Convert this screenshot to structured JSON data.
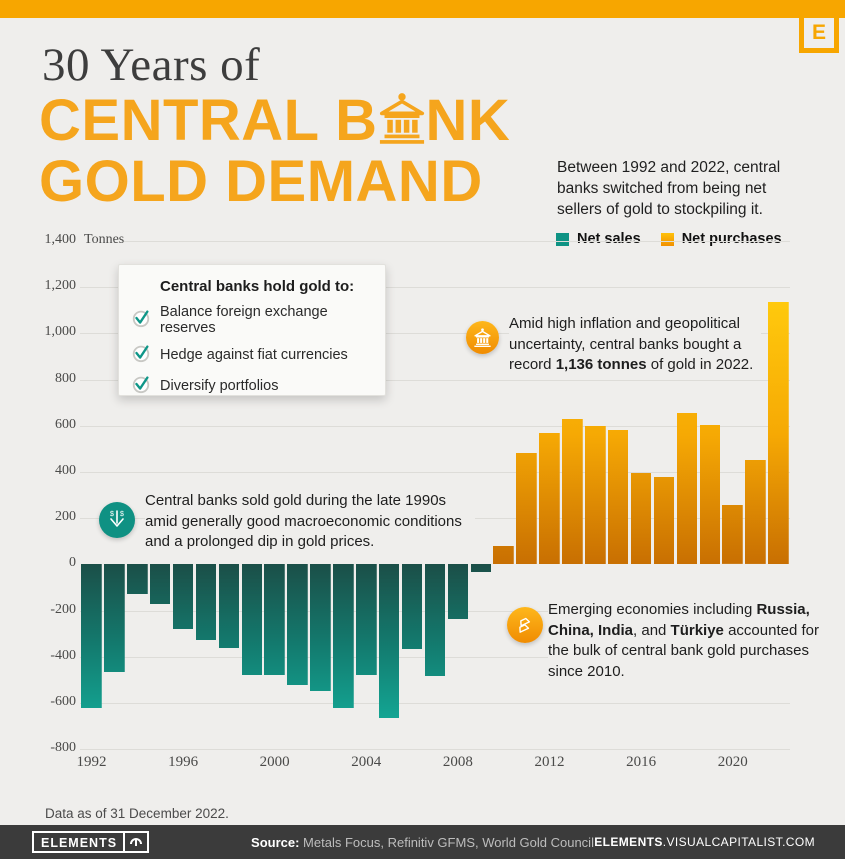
{
  "header": {
    "logo_letter": "E",
    "title_serif": "30 Years of",
    "title_line1_pre": "CENTRAL B",
    "title_line1_post": "NK",
    "title_line2": "GOLD DEMAND",
    "intro": "Between 1992 and 2022, central banks switched from being net sellers of gold to stockpiling it."
  },
  "legend": {
    "net_sales": "Net sales",
    "net_purchases": "Net purchases"
  },
  "callout": {
    "title": "Central banks hold gold to:",
    "items": [
      "Balance foreign exchange reserves",
      "Hedge against fiat currencies",
      "Diversify portfolios"
    ]
  },
  "annotations": {
    "record": {
      "p1": "Amid high inflation and geopolitical uncertainty, central banks bought a record ",
      "b1": "1,136 tonnes",
      "p2": " of gold in 2022."
    },
    "nineties": {
      "text": "Central banks sold gold during the late 1990s amid generally good macroeconomic conditions and a prolonged dip in gold prices."
    },
    "emerging": {
      "p1": "Emerging economies including ",
      "b1": "Russia, China, India",
      "p2": ", and ",
      "b2": "Türkiye",
      "p3": " accounted for the bulk of central bank gold purchases since 2010."
    }
  },
  "chart_data": {
    "type": "bar",
    "title": "30 Years of Central Bank Gold Demand",
    "unit": "Tonnes",
    "ylabel": "Tonnes",
    "ylim": [
      -800,
      1400
    ],
    "ytick_step": 200,
    "grid": true,
    "legend_position": "top-right",
    "legend": [
      "Net sales",
      "Net purchases"
    ],
    "colors": {
      "net_sales_at_zero": "#1B4F48",
      "net_sales_tip": "#13A593",
      "net_purchases_at_zero": "#C86F02",
      "net_purchases_tip": "#FFC90D"
    },
    "x": [
      1992,
      1993,
      1994,
      1995,
      1996,
      1997,
      1998,
      1999,
      2000,
      2001,
      2002,
      2003,
      2004,
      2005,
      2006,
      2007,
      2008,
      2009,
      2010,
      2011,
      2012,
      2013,
      2014,
      2015,
      2016,
      2017,
      2018,
      2019,
      2020,
      2021,
      2022
    ],
    "values": [
      -622,
      -464,
      -130,
      -173,
      -279,
      -326,
      -363,
      -477,
      -479,
      -520,
      -547,
      -620,
      -479,
      -663,
      -365,
      -484,
      -235,
      -34,
      79,
      481,
      569,
      629,
      601,
      580,
      395,
      379,
      656,
      605,
      255,
      450,
      1136
    ],
    "xticks": [
      1992,
      1996,
      2000,
      2004,
      2008,
      2012,
      2016,
      2020
    ]
  },
  "footnote": "Data as of 31 December 2022.",
  "footer": {
    "logo": "ELEMENTS",
    "source_label": "Source:",
    "source_text": " Metals Focus, Refinitiv GFMS, World Gold Council",
    "site_bold": "ELEMENTS",
    "site_rest": ".VISUALCAPITALIST.COM"
  }
}
